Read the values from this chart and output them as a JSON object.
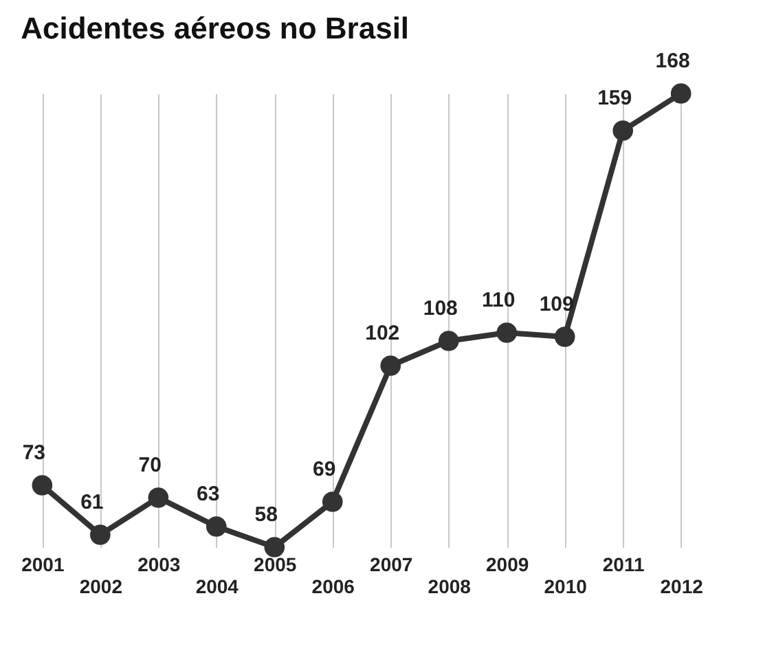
{
  "chart_data": {
    "type": "line",
    "title": "Acidentes aéreos no Brasil",
    "categories": [
      "2001",
      "2002",
      "2003",
      "2004",
      "2005",
      "2006",
      "2007",
      "2008",
      "2009",
      "2010",
      "2011",
      "2012"
    ],
    "values": [
      73,
      61,
      70,
      63,
      58,
      69,
      102,
      108,
      110,
      109,
      159,
      168
    ],
    "color": "#333333",
    "marker": "circle",
    "data_labels": true,
    "grid": "x",
    "tick_labels": "x"
  }
}
